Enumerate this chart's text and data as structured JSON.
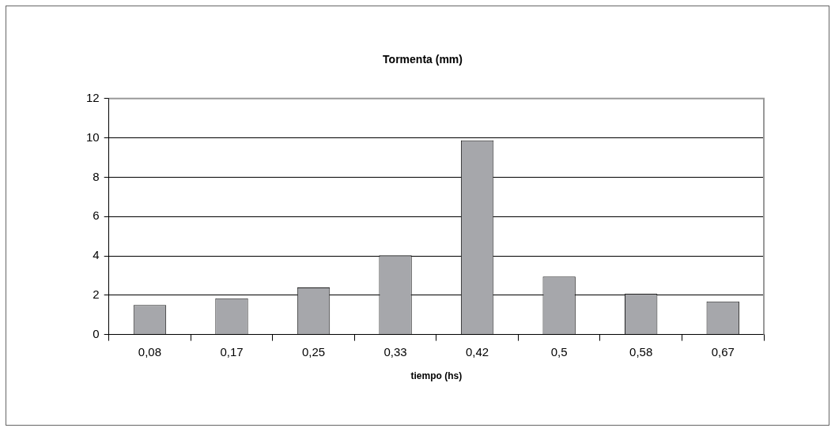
{
  "chart_data": {
    "type": "bar",
    "title": "Tormenta (mm)",
    "xlabel": "tiempo (hs)",
    "categories": [
      "0,08",
      "0,17",
      "0,25",
      "0,33",
      "0,42",
      "0,5",
      "0,58",
      "0,67"
    ],
    "values": [
      1.5,
      1.84,
      2.39,
      4.03,
      9.87,
      2.95,
      2.07,
      1.68
    ],
    "color": "#a6a7ab",
    "ylim": [
      0,
      12
    ],
    "yticks": [
      0,
      2,
      4,
      6,
      8,
      10,
      12
    ],
    "grid": "y",
    "legend": false
  }
}
